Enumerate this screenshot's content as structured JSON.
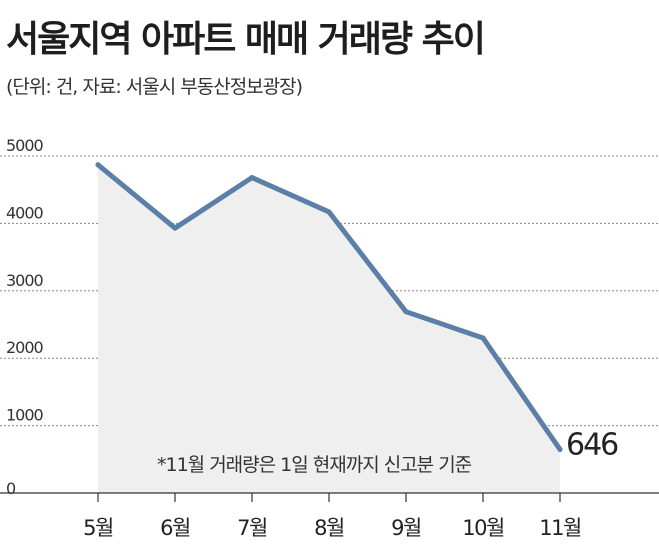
{
  "title": "서울지역 아파트 매매 거래량 추이",
  "subtitle": "(단위: 건, 자료: 서울시 부동산정보광장)",
  "note": "*11월 거래량은 1일 현재까지 신고분 기준",
  "chart_data": {
    "type": "area",
    "title": "서울지역 아파트 매매 거래량 추이",
    "subtitle": "(단위: 건, 자료: 서울시 부동산정보광장)",
    "categories": [
      "5월",
      "6월",
      "7월",
      "8월",
      "9월",
      "10월",
      "11월"
    ],
    "values": [
      4870,
      3930,
      4680,
      4170,
      2690,
      2300,
      646
    ],
    "y_ticks": [
      "0",
      "1000",
      "2000",
      "3000",
      "4000",
      "5000"
    ],
    "ylim": [
      0,
      5000
    ],
    "grid": true,
    "annotations": [
      {
        "category": "11월",
        "text": "646"
      }
    ],
    "colors": {
      "line": "#5b7fa6",
      "fill": "#efefef",
      "grid": "#888888",
      "axis": "#333333"
    }
  }
}
